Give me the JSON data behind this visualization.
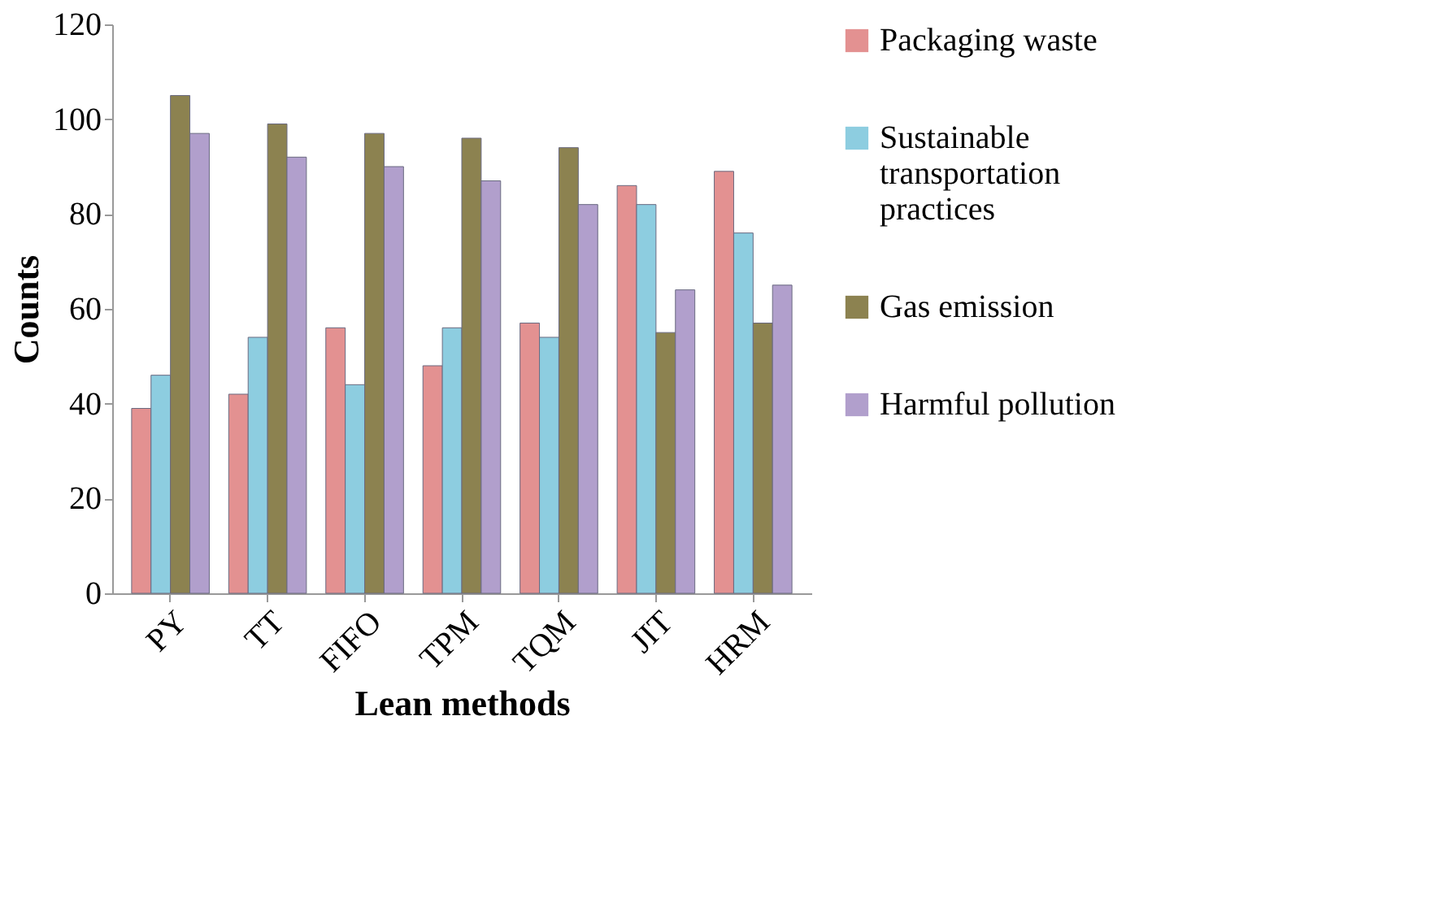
{
  "chart_data": {
    "type": "bar",
    "xlabel": "Lean methods",
    "ylabel": "Counts",
    "categories": [
      "PY",
      "TT",
      "FIFO",
      "TPM",
      "TQM",
      "JIT",
      "HRM"
    ],
    "series": [
      {
        "name": "Packaging waste",
        "color": "#e39191",
        "values": [
          39,
          42,
          56,
          48,
          57,
          86,
          89
        ]
      },
      {
        "name": "Sustainable transportation practices",
        "color": "#8dcde0",
        "values": [
          46,
          54,
          44,
          56,
          54,
          82,
          76
        ]
      },
      {
        "name": "Gas emission",
        "color": "#8c8250",
        "values": [
          105,
          99,
          97,
          96,
          94,
          55,
          57
        ]
      },
      {
        "name": "Harmful pollution",
        "color": "#b19fcc",
        "values": [
          97,
          92,
          90,
          87,
          82,
          64,
          65
        ]
      }
    ],
    "ylim": [
      0,
      120
    ],
    "yticks": [
      0,
      20,
      40,
      60,
      80,
      100,
      120
    ],
    "grid": false,
    "legend": "right"
  }
}
